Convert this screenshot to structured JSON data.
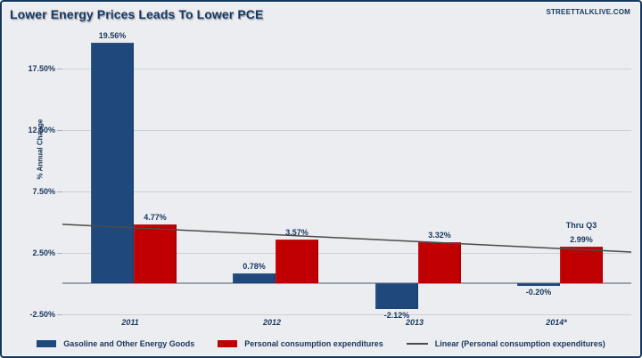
{
  "header": {
    "title": "Lower Energy Prices Leads To Lower PCE",
    "watermark": "STREETTALKLIVE.COM"
  },
  "colors": {
    "navy_text": "#17375E",
    "blue_bar": "#1F497D",
    "red_bar": "#C00000",
    "background": "#ECEDF0",
    "gridline": "#CBD0D6",
    "zero_line": "#9BA3AC",
    "trend_line": "#4A4A4A",
    "border": "#17375E"
  },
  "chart_data": {
    "type": "bar",
    "title": "Lower Energy Prices Leads To Lower PCE",
    "xlabel": "",
    "ylabel": "% Annual Change",
    "ylim": [
      -2.5,
      20.5
    ],
    "grid": true,
    "legend_position": "bottom",
    "categories": [
      "2011",
      "2012",
      "2013",
      "2014*"
    ],
    "series": [
      {
        "name": "Gasoline and Other Energy Goods",
        "color_key": "blue_bar",
        "values": [
          19.56,
          0.78,
          -2.12,
          -0.2
        ],
        "labels": [
          "19.56%",
          "0.78%",
          "-2.12%",
          "-0.20%"
        ]
      },
      {
        "name": "Personal consumption expenditures",
        "color_key": "red_bar",
        "values": [
          4.77,
          3.57,
          3.32,
          2.99
        ],
        "labels": [
          "4.77%",
          "3.57%",
          "3.32%",
          "2.99%"
        ]
      }
    ],
    "annotations": [
      {
        "text": "Thru Q3",
        "category_index": 3,
        "series_index": 1
      }
    ],
    "y_ticks": [
      {
        "value": 17.5,
        "label": "17.50%"
      },
      {
        "value": 12.5,
        "label": "12.50%"
      },
      {
        "value": 7.5,
        "label": "7.50%"
      },
      {
        "value": 2.5,
        "label": "2.50%"
      },
      {
        "value": -2.5,
        "label": "-2.50%"
      }
    ],
    "trendline": {
      "name": "Linear (Personal consumption expenditures)",
      "start_value": 4.79,
      "end_value": 2.54
    }
  }
}
